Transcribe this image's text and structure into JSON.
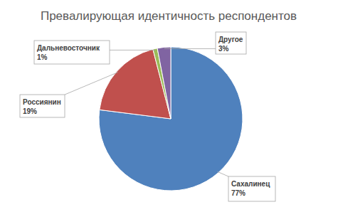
{
  "chart_data": {
    "type": "pie",
    "title": "Превалирующая идентичность респондентов",
    "categories": [
      "Сахалинец",
      "Россиянин",
      "Дальневосточник",
      "Другое"
    ],
    "values": [
      77,
      19,
      1,
      3
    ],
    "value_labels": [
      "77%",
      "19%",
      "1%",
      "3%"
    ],
    "colors": [
      "#4f81bd",
      "#c0504d",
      "#9bbb59",
      "#8064a2"
    ],
    "data_labels": true
  }
}
